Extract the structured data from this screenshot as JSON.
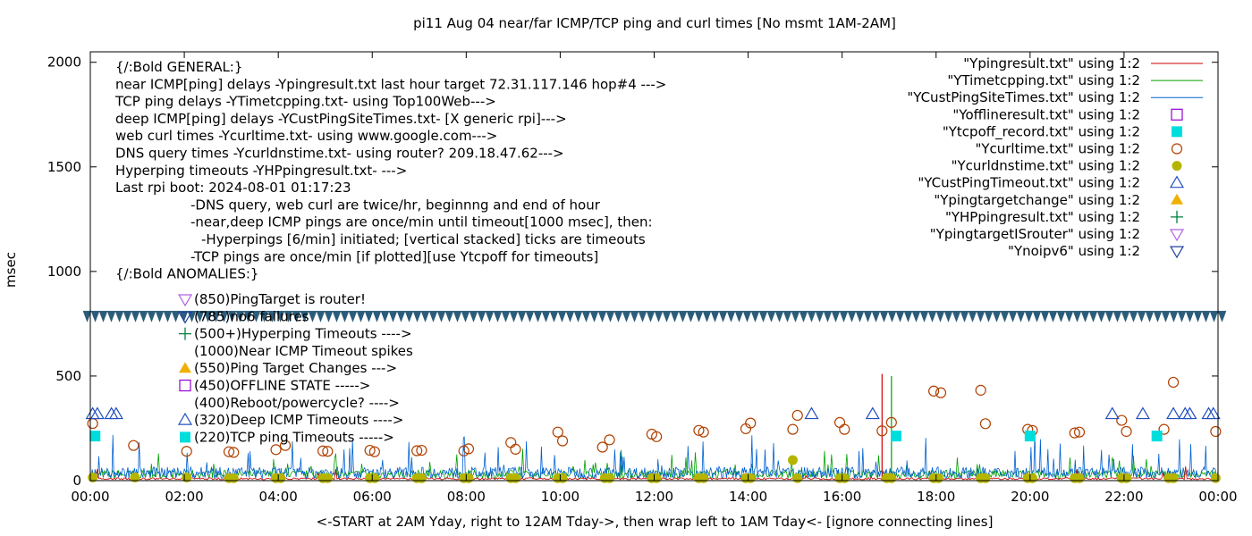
{
  "chart_data": {
    "type": "line",
    "title": "pi11 Aug 04  near/far ICMP/TCP ping and curl times [No msmt 1AM-2AM]",
    "xlabel": "<-START at 2AM Yday, right to 12AM Tday->, then wrap left to 1AM Tday<- [ignore connecting lines]",
    "ylabel": "msec",
    "xlim": [
      0,
      24
    ],
    "ylim": [
      0,
      2050
    ],
    "x_ticks": [
      "00:00",
      "02:00",
      "04:00",
      "06:00",
      "08:00",
      "10:00",
      "12:00",
      "14:00",
      "16:00",
      "18:00",
      "20:00",
      "22:00",
      "00:00"
    ],
    "y_ticks": [
      0,
      500,
      1000,
      1500,
      2000
    ],
    "legend_position": "top-right",
    "legend": [
      {
        "label": "\"Ypingresult.txt\" using 1:2",
        "marker": "line",
        "color": "#cc0000"
      },
      {
        "label": "\"YTimetcpping.txt\" using 1:2",
        "marker": "line",
        "color": "#00a000"
      },
      {
        "label": "\"YCustPingSiteTimes.txt\" using 1:2",
        "marker": "line",
        "color": "#0060d0"
      },
      {
        "label": "\"Yofflineresult.txt\" using 1:2",
        "marker": "square-open",
        "color": "#9400d3"
      },
      {
        "label": "\"Ytcpoff_record.txt\" using 1:2",
        "marker": "square-filled",
        "color": "#00dddd"
      },
      {
        "label": "\"Ycurltime.txt\" using 1:2",
        "marker": "circle-open",
        "color": "#b04000"
      },
      {
        "label": "\"Ycurldnstime.txt\" using 1:2",
        "marker": "circle-filled",
        "color": "#b5b500"
      },
      {
        "label": "\"YCustPingTimeout.txt\" using 1:2",
        "marker": "triangle-up-open",
        "color": "#2050c0"
      },
      {
        "label": "\"Ypingtargetchange\" using 1:2",
        "marker": "triangle-up-filled",
        "color": "#f0b000"
      },
      {
        "label": "\"YHPpingresult.txt\" using 1:2",
        "marker": "plus",
        "color": "#008040"
      },
      {
        "label": "\"YpingtargetISrouter\" using 1:2",
        "marker": "triangle-down-open",
        "color": "#b060e0"
      },
      {
        "label": "\"Ynoipv6\" using 1:2",
        "marker": "triangle-down-open",
        "color": "#2040a0"
      }
    ],
    "info_lines": [
      "{/:Bold GENERAL:}",
      "near ICMP[ping] delays -Ypingresult.txt last hour target 72.31.117.146 hop#4 --->",
      "TCP ping delays -YTimetcpping.txt- using Top100Web--->",
      "deep ICMP[ping] delays -YCustPingSiteTimes.txt- [X generic rpi]--->",
      "web curl times -Ycurltime.txt- using www.google.com--->",
      "DNS query times -Ycurldnstime.txt- using router? 209.18.47.62--->",
      "Hyperping timeouts -YHPpingresult.txt- --->",
      "Last rpi boot: 2024-08-01 01:17:23",
      "-DNS query, web curl are twice/hr, beginnng and end of hour",
      "-near,deep ICMP pings are once/min until timeout[1000 msec], then:",
      "-Hyperpings [6/min] initiated; [vertical stacked] ticks are timeouts",
      "-TCP pings are once/min [if plotted][use Ytcpoff for timeouts]",
      "{/:Bold ANOMALIES:}"
    ],
    "anomalies": [
      {
        "marker": "triangle-down-open",
        "color": "#b060e0",
        "text": "(850)PingTarget is router!"
      },
      {
        "marker": "triangle-down-open",
        "color": "#2040a0",
        "text": "(785)no6 failures"
      },
      {
        "marker": "plus",
        "color": "#008040",
        "text": "(500+)Hyperping Timeouts ---->"
      },
      {
        "marker": "none",
        "color": "#000000",
        "text": "(1000)Near ICMP Timeout spikes"
      },
      {
        "marker": "triangle-up-filled",
        "color": "#f0b000",
        "text": "(550)Ping Target Changes --->"
      },
      {
        "marker": "square-open",
        "color": "#9400d3",
        "text": "(450)OFFLINE STATE ----->"
      },
      {
        "marker": "none",
        "color": "#000000",
        "text": "(400)Reboot/powercycle? ---->"
      },
      {
        "marker": "triangle-up-open",
        "color": "#2050c0",
        "text": "(320)Deep ICMP Timeouts ---->"
      },
      {
        "marker": "square-filled",
        "color": "#00dddd",
        "text": "(220)TCP ping Timeouts ----->"
      }
    ],
    "series": [
      {
        "name": "\"Ycurltime.txt\" using 1:2",
        "marker": "circle-open",
        "color": "#b04000",
        "points": [
          [
            0.05,
            273
          ],
          [
            0.92,
            168
          ],
          [
            2.05,
            140
          ],
          [
            2.95,
            138
          ],
          [
            3.05,
            135
          ],
          [
            3.95,
            148
          ],
          [
            4.15,
            168
          ],
          [
            4.95,
            142
          ],
          [
            5.05,
            140
          ],
          [
            5.95,
            145
          ],
          [
            6.05,
            138
          ],
          [
            6.95,
            143
          ],
          [
            7.05,
            145
          ],
          [
            7.95,
            142
          ],
          [
            8.05,
            152
          ],
          [
            8.95,
            182
          ],
          [
            9.05,
            150
          ],
          [
            9.95,
            232
          ],
          [
            10.05,
            190
          ],
          [
            10.9,
            160
          ],
          [
            11.05,
            195
          ],
          [
            11.95,
            222
          ],
          [
            12.05,
            210
          ],
          [
            12.95,
            240
          ],
          [
            13.05,
            232
          ],
          [
            13.95,
            248
          ],
          [
            14.05,
            275
          ],
          [
            14.95,
            245
          ],
          [
            15.05,
            312
          ],
          [
            15.95,
            278
          ],
          [
            16.05,
            245
          ],
          [
            16.85,
            238
          ],
          [
            17.05,
            278
          ],
          [
            17.95,
            428
          ],
          [
            18.1,
            420
          ],
          [
            18.95,
            432
          ],
          [
            19.05,
            272
          ],
          [
            19.95,
            245
          ],
          [
            20.05,
            240
          ],
          [
            20.95,
            228
          ],
          [
            21.05,
            232
          ],
          [
            21.95,
            288
          ],
          [
            22.05,
            235
          ],
          [
            22.85,
            245
          ],
          [
            23.05,
            470
          ],
          [
            23.95,
            235
          ]
        ]
      },
      {
        "name": "\"Ycurldnstime.txt\" using 1:2",
        "marker": "circle-filled",
        "color": "#b5b500",
        "points": [
          [
            0.05,
            15
          ],
          [
            0.95,
            15
          ],
          [
            2.05,
            15
          ],
          [
            2.95,
            12
          ],
          [
            3.05,
            12
          ],
          [
            3.95,
            12
          ],
          [
            4.05,
            12
          ],
          [
            4.95,
            12
          ],
          [
            5.05,
            12
          ],
          [
            5.95,
            12
          ],
          [
            6.05,
            12
          ],
          [
            6.95,
            12
          ],
          [
            7.05,
            12
          ],
          [
            7.95,
            12
          ],
          [
            8.05,
            12
          ],
          [
            8.95,
            12
          ],
          [
            9.05,
            12
          ],
          [
            9.95,
            12
          ],
          [
            10.05,
            12
          ],
          [
            10.95,
            12
          ],
          [
            11.05,
            12
          ],
          [
            11.95,
            12
          ],
          [
            12.05,
            12
          ],
          [
            12.95,
            12
          ],
          [
            13.05,
            12
          ],
          [
            13.95,
            12
          ],
          [
            14.05,
            12
          ],
          [
            14.95,
            98
          ],
          [
            15.05,
            12
          ],
          [
            15.95,
            12
          ],
          [
            16.05,
            12
          ],
          [
            16.95,
            12
          ],
          [
            17.05,
            12
          ],
          [
            17.95,
            12
          ],
          [
            18.05,
            12
          ],
          [
            18.95,
            12
          ],
          [
            19.05,
            12
          ],
          [
            19.95,
            12
          ],
          [
            20.05,
            12
          ],
          [
            20.95,
            12
          ],
          [
            21.05,
            12
          ],
          [
            21.95,
            12
          ],
          [
            22.05,
            12
          ],
          [
            22.95,
            12
          ],
          [
            23.05,
            12
          ],
          [
            23.95,
            12
          ]
        ]
      },
      {
        "name": "\"Ytcpoff_record.txt\" using 1:2",
        "marker": "square-filled",
        "color": "#00dddd",
        "points": [
          [
            0.1,
            213
          ],
          [
            17.15,
            213
          ],
          [
            20.0,
            213
          ],
          [
            22.7,
            213
          ]
        ]
      },
      {
        "name": "\"YCustPingTimeout.txt\" using 1:2",
        "marker": "triangle-up-open",
        "color": "#2050c0",
        "points": [
          [
            0.05,
            318
          ],
          [
            0.15,
            318
          ],
          [
            0.45,
            318
          ],
          [
            0.55,
            318
          ],
          [
            15.35,
            318
          ],
          [
            16.65,
            318
          ],
          [
            21.75,
            318
          ],
          [
            22.4,
            318
          ],
          [
            23.05,
            318
          ],
          [
            23.3,
            318
          ],
          [
            23.4,
            318
          ],
          [
            23.8,
            318
          ],
          [
            23.9,
            318
          ]
        ]
      }
    ]
  }
}
